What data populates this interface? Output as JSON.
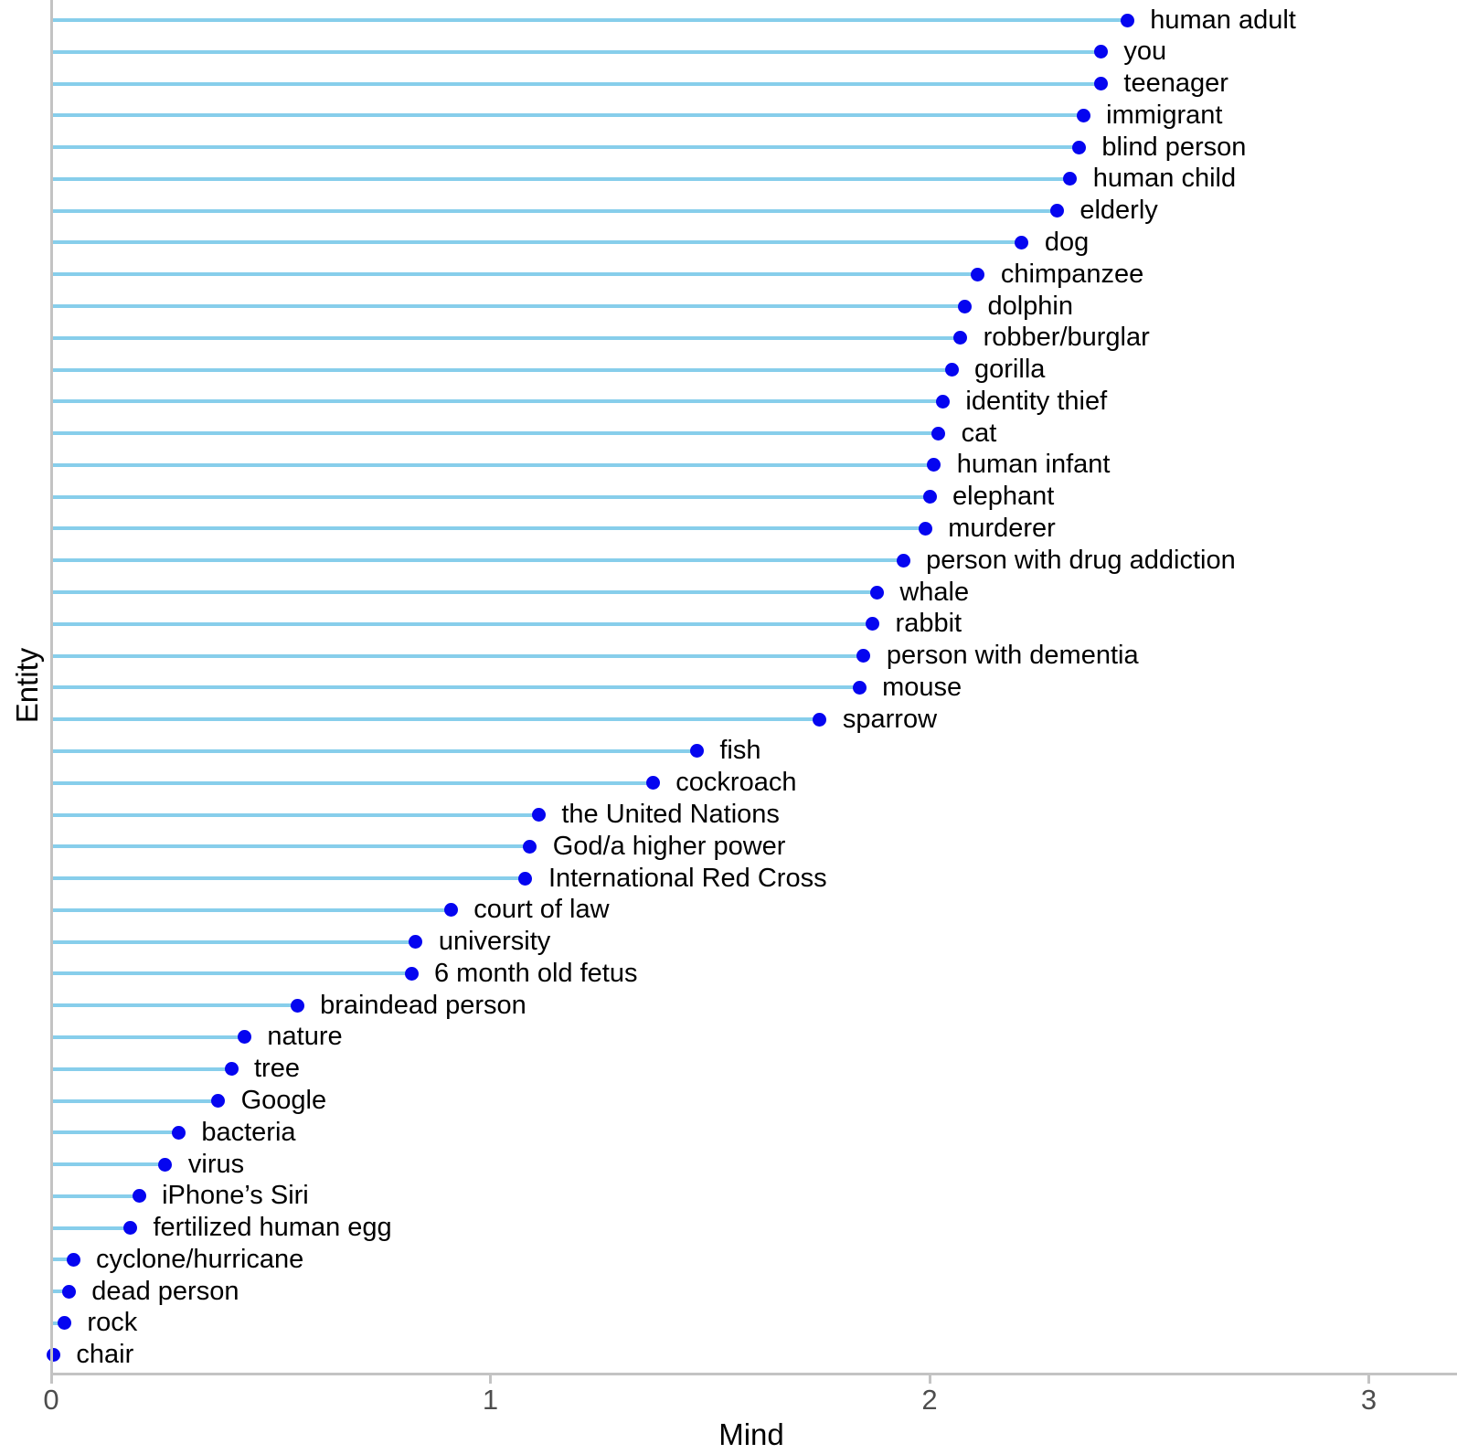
{
  "chart_data": {
    "type": "scatter",
    "variant": "horizontal-lollipop",
    "title": "",
    "xlabel": "Mind",
    "ylabel": "Entity",
    "xlim": [
      0,
      3.25
    ],
    "xticks": [
      0,
      1,
      2,
      3
    ],
    "xtick_labels": [
      "0",
      "1",
      "2",
      "3"
    ],
    "grid": false,
    "legend": "none",
    "categories": [
      "human adult",
      "you",
      "teenager",
      "immigrant",
      "blind person",
      "human child",
      "elderly",
      "dog",
      "chimpanzee",
      "dolphin",
      "robber/burglar",
      "gorilla",
      "identity thief",
      "cat",
      "human infant",
      "elephant",
      "murderer",
      "person with drug addiction",
      "whale",
      "rabbit",
      "person with dementia",
      "mouse",
      "sparrow",
      "fish",
      "cockroach",
      "the United Nations",
      "God/a higher power",
      "International Red Cross",
      "court of law",
      "university",
      "6 month old fetus",
      "braindead person",
      "nature",
      "tree",
      "Google",
      "bacteria",
      "virus",
      "iPhone’s Siri",
      "fertilized human egg",
      "cyclone/hurricane",
      "dead person",
      "rock",
      "chair"
    ],
    "values": [
      2.45,
      2.39,
      2.39,
      2.35,
      2.34,
      2.32,
      2.29,
      2.21,
      2.11,
      2.08,
      2.07,
      2.05,
      2.03,
      2.02,
      2.01,
      2.0,
      1.99,
      1.94,
      1.88,
      1.87,
      1.85,
      1.84,
      1.75,
      1.47,
      1.37,
      1.11,
      1.09,
      1.08,
      0.91,
      0.83,
      0.82,
      0.56,
      0.44,
      0.41,
      0.38,
      0.29,
      0.26,
      0.2,
      0.18,
      0.05,
      0.04,
      0.03,
      0.005
    ],
    "colors": {
      "stem": "#87CEEB",
      "point": "#0505F0",
      "axis": "#C3C3C3",
      "tick_label": "#4D4D4D",
      "category_label": "#000000",
      "axis_title": "#000000",
      "background": "#FFFFFF"
    }
  }
}
